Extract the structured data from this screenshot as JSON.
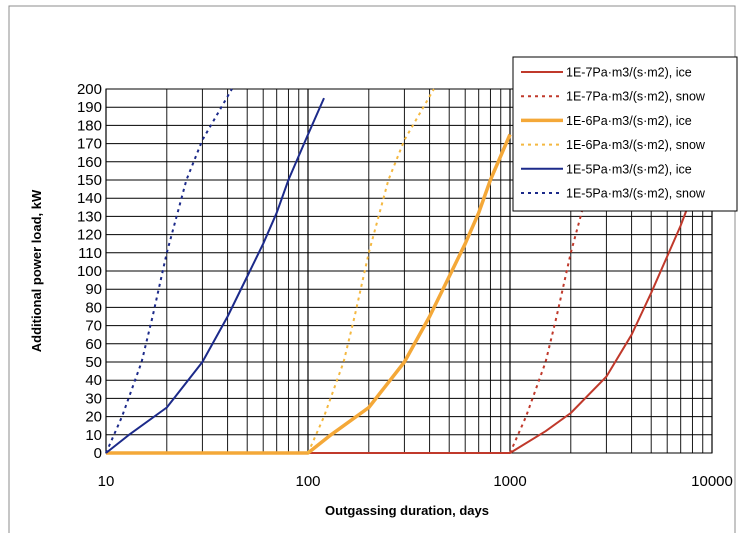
{
  "chart_data": {
    "type": "line",
    "title": "",
    "xlabel": "Outgassing duration, days",
    "ylabel": "Additional power load, kW",
    "x_scale": "log",
    "xlim": [
      10,
      10000
    ],
    "ylim": [
      0,
      200
    ],
    "x_ticks": [
      "10",
      "100",
      "1000",
      "10000"
    ],
    "y_ticks": [
      "0",
      "10",
      "20",
      "30",
      "40",
      "50",
      "60",
      "70",
      "80",
      "90",
      "100",
      "110",
      "120",
      "130",
      "140",
      "150",
      "160",
      "170",
      "180",
      "190",
      "200"
    ],
    "grid": true,
    "legend_position": "top-right",
    "series": [
      {
        "name": "1E-7Pa·m3/(s·m2), ice",
        "color": "#c0392b",
        "style": "solid",
        "width": 2,
        "points": [
          [
            10,
            0
          ],
          [
            1000,
            0
          ],
          [
            1500,
            12
          ],
          [
            2000,
            22
          ],
          [
            3000,
            42
          ],
          [
            4000,
            65
          ],
          [
            5000,
            88
          ],
          [
            6000,
            108
          ],
          [
            7000,
            125
          ],
          [
            8000,
            142
          ]
        ]
      },
      {
        "name": "1E-7Pa·m3/(s·m2), snow",
        "color": "#c0392b",
        "style": "dashed",
        "width": 2,
        "points": [
          [
            1000,
            0
          ],
          [
            1200,
            20
          ],
          [
            1500,
            50
          ],
          [
            1700,
            75
          ],
          [
            2000,
            110
          ],
          [
            2500,
            150
          ],
          [
            3000,
            172
          ],
          [
            3500,
            200
          ]
        ]
      },
      {
        "name": "1E-6Pa·m3/(s·m2), ice",
        "color": "#f4a838",
        "style": "solid",
        "width": 3.5,
        "points": [
          [
            10,
            0
          ],
          [
            100,
            0
          ],
          [
            130,
            10
          ],
          [
            200,
            25
          ],
          [
            300,
            50
          ],
          [
            400,
            75
          ],
          [
            500,
            97
          ],
          [
            600,
            115
          ],
          [
            700,
            132
          ],
          [
            800,
            150
          ],
          [
            1000,
            175
          ]
        ]
      },
      {
        "name": "1E-6Pa·m3/(s·m2), snow",
        "color": "#f4b840",
        "style": "dashed",
        "width": 2,
        "points": [
          [
            100,
            0
          ],
          [
            120,
            20
          ],
          [
            150,
            50
          ],
          [
            170,
            75
          ],
          [
            200,
            110
          ],
          [
            250,
            150
          ],
          [
            300,
            172
          ],
          [
            420,
            200
          ]
        ]
      },
      {
        "name": "1E-5Pa·m3/(s·m2), ice",
        "color": "#1c2a8a",
        "style": "solid",
        "width": 2,
        "points": [
          [
            10,
            0
          ],
          [
            13,
            10
          ],
          [
            20,
            25
          ],
          [
            30,
            50
          ],
          [
            40,
            75
          ],
          [
            50,
            97
          ],
          [
            60,
            115
          ],
          [
            70,
            132
          ],
          [
            80,
            150
          ],
          [
            100,
            175
          ],
          [
            120,
            195
          ]
        ]
      },
      {
        "name": "1E-5Pa·m3/(s·m2), snow",
        "color": "#1c2a8a",
        "style": "dashed",
        "width": 2,
        "points": [
          [
            10,
            0
          ],
          [
            12,
            20
          ],
          [
            15,
            50
          ],
          [
            17,
            75
          ],
          [
            20,
            110
          ],
          [
            25,
            150
          ],
          [
            30,
            172
          ],
          [
            42,
            200
          ]
        ]
      }
    ]
  }
}
